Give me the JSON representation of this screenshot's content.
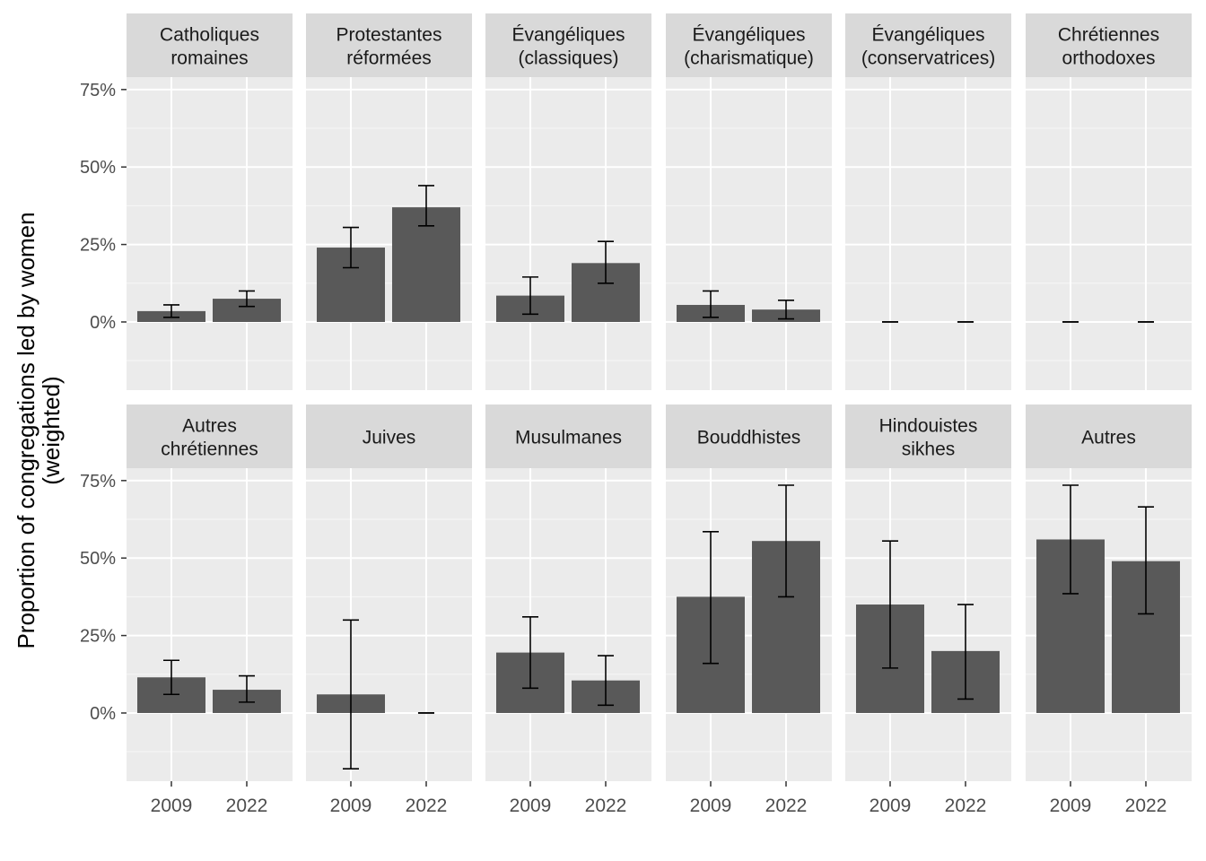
{
  "chart_data": {
    "type": "bar",
    "ylabel_lines": [
      "Proportion of congregations led by women",
      "(weighted)"
    ],
    "xlabel": "",
    "x_categories": [
      "2009",
      "2022"
    ],
    "y_ticks": [
      0,
      25,
      50,
      75
    ],
    "y_tick_labels": [
      "0%",
      "25%",
      "50%",
      "75%"
    ],
    "ylim": [
      -22,
      79
    ],
    "y_unit": "percent",
    "grid": true,
    "facet_layout": {
      "rows": 2,
      "cols": 6
    },
    "colors": {
      "bar": "#595959",
      "panel": "#ebebeb",
      "strip": "#d9d9d9",
      "grid_major": "#ffffff",
      "grid_minor": "#f7f7f7",
      "text": "#4d4d4d",
      "strip_text": "#1a1a1a",
      "errorbar": "#000000"
    },
    "facets": [
      {
        "label": [
          "Catholiques",
          "romaines"
        ],
        "values": [
          3.5,
          7.5
        ],
        "lower": [
          1.5,
          5.0
        ],
        "upper": [
          5.5,
          10.0
        ]
      },
      {
        "label": [
          "Protestantes",
          "réformées"
        ],
        "values": [
          24,
          37
        ],
        "lower": [
          17.5,
          31
        ],
        "upper": [
          30.5,
          44
        ]
      },
      {
        "label": [
          "Évangéliques",
          "(classiques)"
        ],
        "values": [
          8.5,
          19
        ],
        "lower": [
          2.5,
          12.5
        ],
        "upper": [
          14.5,
          26
        ]
      },
      {
        "label": [
          "Évangéliques",
          "(charismatique)"
        ],
        "values": [
          5.5,
          4.0
        ],
        "lower": [
          1.5,
          1.0
        ],
        "upper": [
          10.0,
          7.0
        ]
      },
      {
        "label": [
          "Évangéliques",
          "(conservatrices)"
        ],
        "values": [
          0,
          0
        ],
        "lower": [
          0,
          0
        ],
        "upper": [
          0,
          0
        ]
      },
      {
        "label": [
          "Chrétiennes",
          "orthodoxes"
        ],
        "values": [
          0,
          0
        ],
        "lower": [
          0,
          0
        ],
        "upper": [
          0,
          0
        ]
      },
      {
        "label": [
          "Autres",
          "chrétiennes"
        ],
        "values": [
          11.5,
          7.5
        ],
        "lower": [
          6.0,
          3.5
        ],
        "upper": [
          17.0,
          12.0
        ]
      },
      {
        "label": [
          "Juives"
        ],
        "values": [
          6.0,
          0
        ],
        "lower": [
          -18,
          0
        ],
        "upper": [
          30,
          0
        ]
      },
      {
        "label": [
          "Musulmanes"
        ],
        "values": [
          19.5,
          10.5
        ],
        "lower": [
          8.0,
          2.5
        ],
        "upper": [
          31,
          18.5
        ]
      },
      {
        "label": [
          "Bouddhistes"
        ],
        "values": [
          37.5,
          55.5
        ],
        "lower": [
          16,
          37.5
        ],
        "upper": [
          58.5,
          73.5
        ]
      },
      {
        "label": [
          "Hindouistes",
          "sikhes"
        ],
        "values": [
          35,
          20
        ],
        "lower": [
          14.5,
          4.5
        ],
        "upper": [
          55.5,
          35
        ]
      },
      {
        "label": [
          "Autres"
        ],
        "values": [
          56,
          49
        ],
        "lower": [
          38.5,
          32
        ],
        "upper": [
          73.5,
          66.5
        ]
      }
    ]
  }
}
